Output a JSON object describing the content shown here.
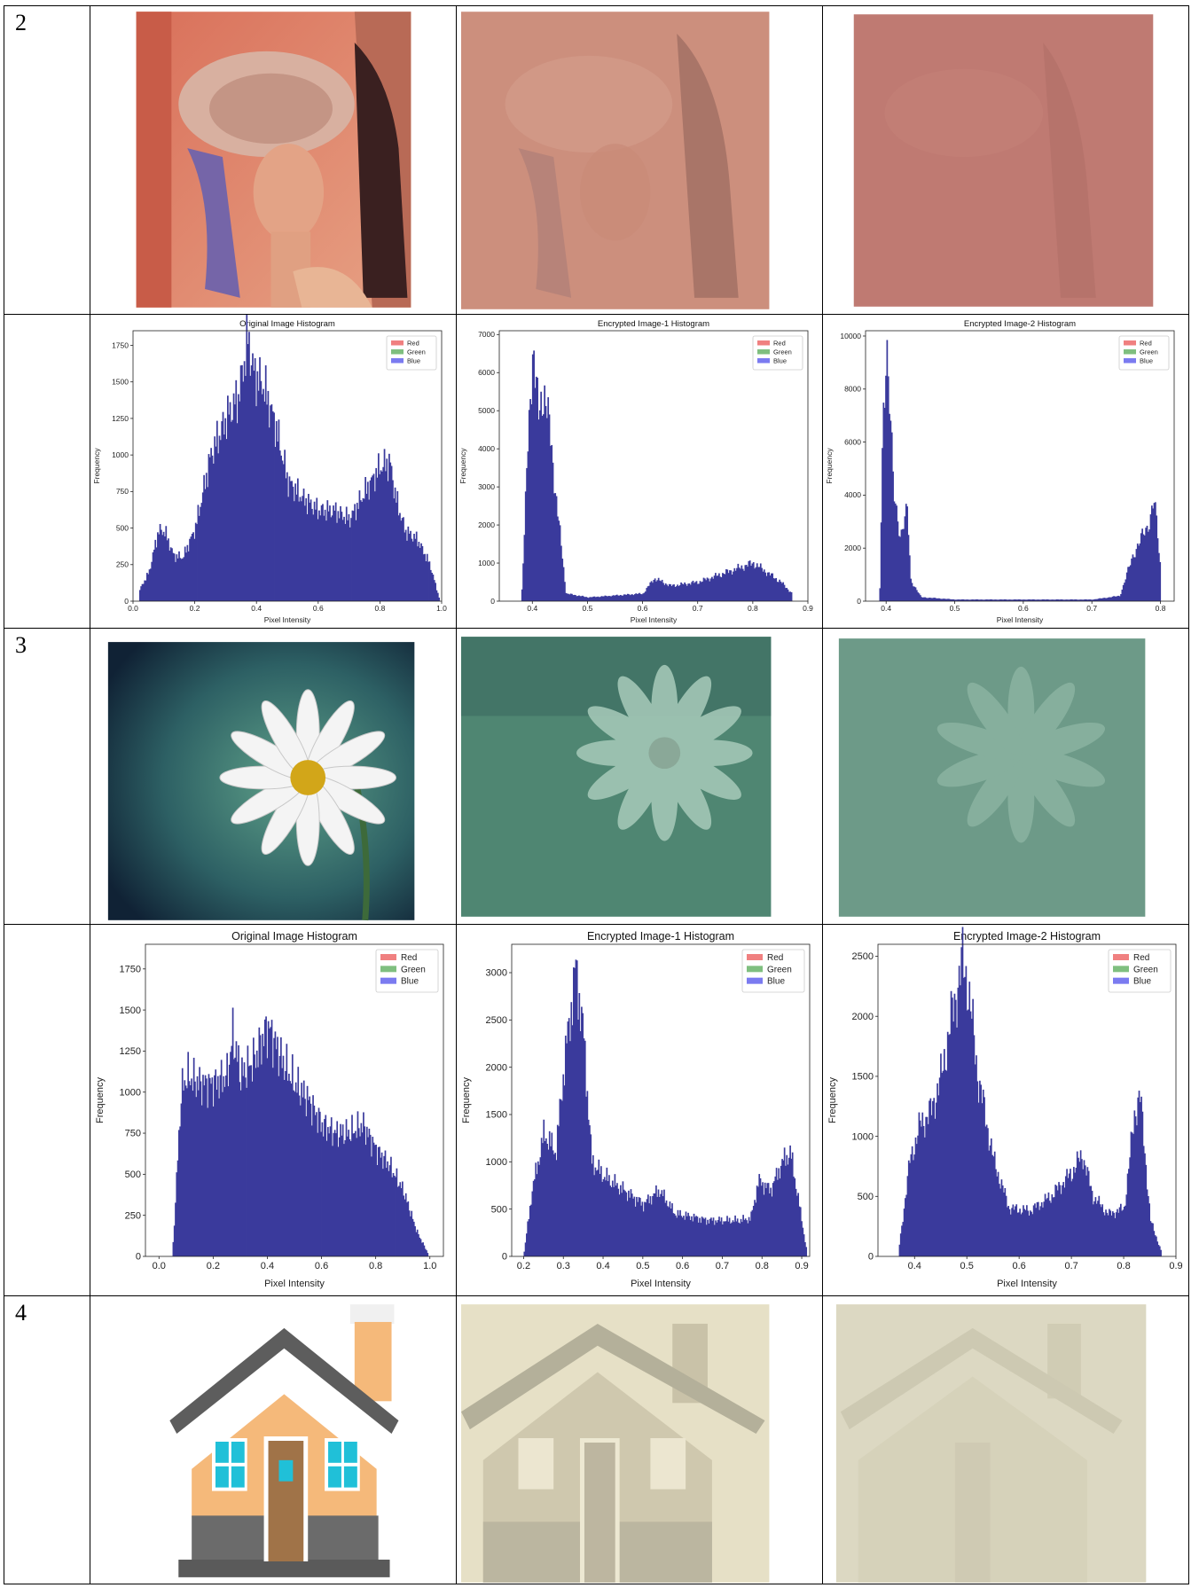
{
  "rows": [
    {
      "number": "2"
    },
    {
      "number": ""
    },
    {
      "number": "3"
    },
    {
      "number": ""
    },
    {
      "number": "4"
    }
  ],
  "legend": [
    "Red",
    "Green",
    "Blue"
  ],
  "colors": {
    "red": "#f08080",
    "green": "#7fbf7f",
    "blue": "#3a3a9c"
  },
  "chart_data": [
    {
      "type": "bar",
      "title": "Original Image Histogram",
      "xlabel": "Pixel Intensity",
      "ylabel": "Frequency",
      "xlim": [
        0.0,
        1.0
      ],
      "ylim": [
        0,
        1850
      ],
      "xticks": [
        "0.0",
        "0.2",
        "0.4",
        "0.6",
        "0.8",
        "1.0"
      ],
      "yticks": [
        "0",
        "250",
        "500",
        "750",
        "1000",
        "1250",
        "1500",
        "1750"
      ],
      "x": [
        0.02,
        0.05,
        0.08,
        0.1,
        0.13,
        0.16,
        0.2,
        0.25,
        0.3,
        0.34,
        0.37,
        0.39,
        0.42,
        0.46,
        0.5,
        0.55,
        0.6,
        0.65,
        0.7,
        0.75,
        0.8,
        0.83,
        0.85,
        0.88,
        0.92,
        0.96,
        0.99
      ],
      "values": [
        80,
        200,
        480,
        480,
        310,
        300,
        500,
        1000,
        1250,
        1400,
        1800,
        1550,
        1480,
        1200,
        820,
        700,
        620,
        620,
        560,
        750,
        920,
        950,
        700,
        480,
        420,
        250,
        20
      ],
      "series": [
        {
          "name": "Blue",
          "values": [
            80,
            200,
            480,
            480,
            310,
            300,
            500,
            1000,
            1250,
            1400,
            1800,
            1550,
            1480,
            1200,
            820,
            700,
            620,
            620,
            560,
            750,
            920,
            950,
            700,
            480,
            420,
            250,
            20
          ]
        }
      ]
    },
    {
      "type": "bar",
      "title": "Encrypted Image-1 Histogram",
      "xlabel": "Pixel Intensity",
      "ylabel": "Frequency",
      "xlim": [
        0.34,
        0.9
      ],
      "ylim": [
        0,
        7100
      ],
      "xticks": [
        "0.4",
        "0.5",
        "0.6",
        "0.7",
        "0.8",
        "0.9"
      ],
      "yticks": [
        "0",
        "1000",
        "2000",
        "3000",
        "4000",
        "5000",
        "6000",
        "7000"
      ],
      "x": [
        0.38,
        0.39,
        0.4,
        0.41,
        0.42,
        0.43,
        0.44,
        0.46,
        0.5,
        0.55,
        0.6,
        0.62,
        0.65,
        0.7,
        0.74,
        0.78,
        0.8,
        0.82,
        0.85,
        0.87
      ],
      "values": [
        300,
        3800,
        6800,
        4800,
        5600,
        4500,
        3000,
        200,
        100,
        150,
        200,
        600,
        400,
        500,
        700,
        900,
        1000,
        800,
        500,
        200
      ],
      "series": [
        {
          "name": "Blue",
          "values": [
            300,
            3800,
            6800,
            4800,
            5600,
            4500,
            3000,
            200,
            100,
            150,
            200,
            600,
            400,
            500,
            700,
            900,
            1000,
            800,
            500,
            200
          ]
        }
      ]
    },
    {
      "type": "bar",
      "title": "Encrypted Image-2 Histogram",
      "xlabel": "Pixel Intensity",
      "ylabel": "Frequency",
      "xlim": [
        0.37,
        0.82
      ],
      "ylim": [
        0,
        10200
      ],
      "xticks": [
        "0.4",
        "0.5",
        "0.6",
        "0.7",
        "0.8"
      ],
      "yticks": [
        "0",
        "2000",
        "4000",
        "6000",
        "8000",
        "10000"
      ],
      "x": [
        0.39,
        0.395,
        0.4,
        0.405,
        0.41,
        0.42,
        0.43,
        0.435,
        0.45,
        0.5,
        0.6,
        0.7,
        0.74,
        0.76,
        0.78,
        0.79,
        0.8
      ],
      "values": [
        500,
        7500,
        9800,
        7000,
        4000,
        2500,
        3400,
        800,
        150,
        60,
        60,
        60,
        200,
        1800,
        2800,
        3800,
        1000
      ],
      "series": [
        {
          "name": "Blue",
          "values": [
            500,
            7500,
            9800,
            7000,
            4000,
            2500,
            3400,
            800,
            150,
            60,
            60,
            60,
            200,
            1800,
            2800,
            3800,
            1000
          ]
        }
      ]
    },
    {
      "type": "bar",
      "title": "Original Image Histogram",
      "xlabel": "Pixel Intensity",
      "ylabel": "Frequency",
      "xlim": [
        -0.05,
        1.05
      ],
      "ylim": [
        0,
        1900
      ],
      "xticks": [
        "0.0",
        "0.2",
        "0.4",
        "0.6",
        "0.8",
        "1.0"
      ],
      "yticks": [
        "0",
        "250",
        "500",
        "750",
        "1000",
        "1250",
        "1500",
        "1750"
      ],
      "x": [
        0.05,
        0.08,
        0.1,
        0.15,
        0.2,
        0.25,
        0.27,
        0.3,
        0.35,
        0.4,
        0.45,
        0.5,
        0.55,
        0.6,
        0.65,
        0.7,
        0.75,
        0.8,
        0.85,
        0.9,
        0.95,
        0.99
      ],
      "values": [
        80,
        1000,
        1100,
        1050,
        1050,
        1100,
        1350,
        1100,
        1200,
        1400,
        1200,
        1050,
        950,
        800,
        750,
        750,
        800,
        650,
        550,
        400,
        150,
        20
      ],
      "series": [
        {
          "name": "Blue",
          "values": [
            80,
            1000,
            1100,
            1050,
            1050,
            1100,
            1350,
            1100,
            1200,
            1400,
            1200,
            1050,
            950,
            800,
            750,
            750,
            800,
            650,
            550,
            400,
            150,
            20
          ]
        }
      ]
    },
    {
      "type": "bar",
      "title": "Encrypted Image-1 Histogram",
      "xlabel": "Pixel Intensity",
      "ylabel": "Frequency",
      "xlim": [
        0.17,
        0.92
      ],
      "ylim": [
        0,
        3300
      ],
      "xticks": [
        "0.2",
        "0.3",
        "0.4",
        "0.5",
        "0.6",
        "0.7",
        "0.8",
        "0.9"
      ],
      "yticks": [
        "0",
        "500",
        "1000",
        "1500",
        "2000",
        "2500",
        "3000"
      ],
      "x": [
        0.2,
        0.22,
        0.25,
        0.28,
        0.3,
        0.32,
        0.33,
        0.35,
        0.37,
        0.4,
        0.45,
        0.5,
        0.54,
        0.58,
        0.62,
        0.66,
        0.7,
        0.74,
        0.77,
        0.79,
        0.82,
        0.85,
        0.87,
        0.89,
        0.91
      ],
      "values": [
        50,
        700,
        1300,
        1100,
        2000,
        2700,
        3050,
        2300,
        1000,
        850,
        700,
        550,
        700,
        450,
        420,
        380,
        380,
        380,
        400,
        800,
        700,
        1000,
        1100,
        600,
        80
      ],
      "series": [
        {
          "name": "Blue",
          "values": [
            50,
            700,
            1300,
            1100,
            2000,
            2700,
            3050,
            2300,
            1000,
            850,
            700,
            550,
            700,
            450,
            420,
            380,
            380,
            380,
            400,
            800,
            700,
            1000,
            1100,
            600,
            80
          ]
        }
      ]
    },
    {
      "type": "bar",
      "title": "Encrypted Image-2 Histogram",
      "xlabel": "Pixel Intensity",
      "ylabel": "Frequency",
      "xlim": [
        0.33,
        0.9
      ],
      "ylim": [
        0,
        2600
      ],
      "xticks": [
        "0.4",
        "0.5",
        "0.6",
        "0.7",
        "0.8",
        "0.9"
      ],
      "yticks": [
        "0",
        "500",
        "1000",
        "1500",
        "2000",
        "2500"
      ],
      "x": [
        0.37,
        0.39,
        0.41,
        0.43,
        0.45,
        0.47,
        0.49,
        0.5,
        0.52,
        0.55,
        0.58,
        0.62,
        0.66,
        0.7,
        0.72,
        0.74,
        0.77,
        0.8,
        0.82,
        0.83,
        0.85,
        0.87
      ],
      "values": [
        100,
        800,
        1100,
        1200,
        1500,
        2000,
        2450,
        2300,
        1500,
        800,
        400,
        380,
        500,
        700,
        850,
        500,
        350,
        400,
        1200,
        1350,
        300,
        50
      ],
      "series": [
        {
          "name": "Blue",
          "values": [
            100,
            800,
            1100,
            1200,
            1500,
            2000,
            2450,
            2300,
            1500,
            800,
            400,
            380,
            500,
            700,
            850,
            500,
            350,
            400,
            1200,
            1350,
            300,
            50
          ]
        }
      ]
    }
  ]
}
